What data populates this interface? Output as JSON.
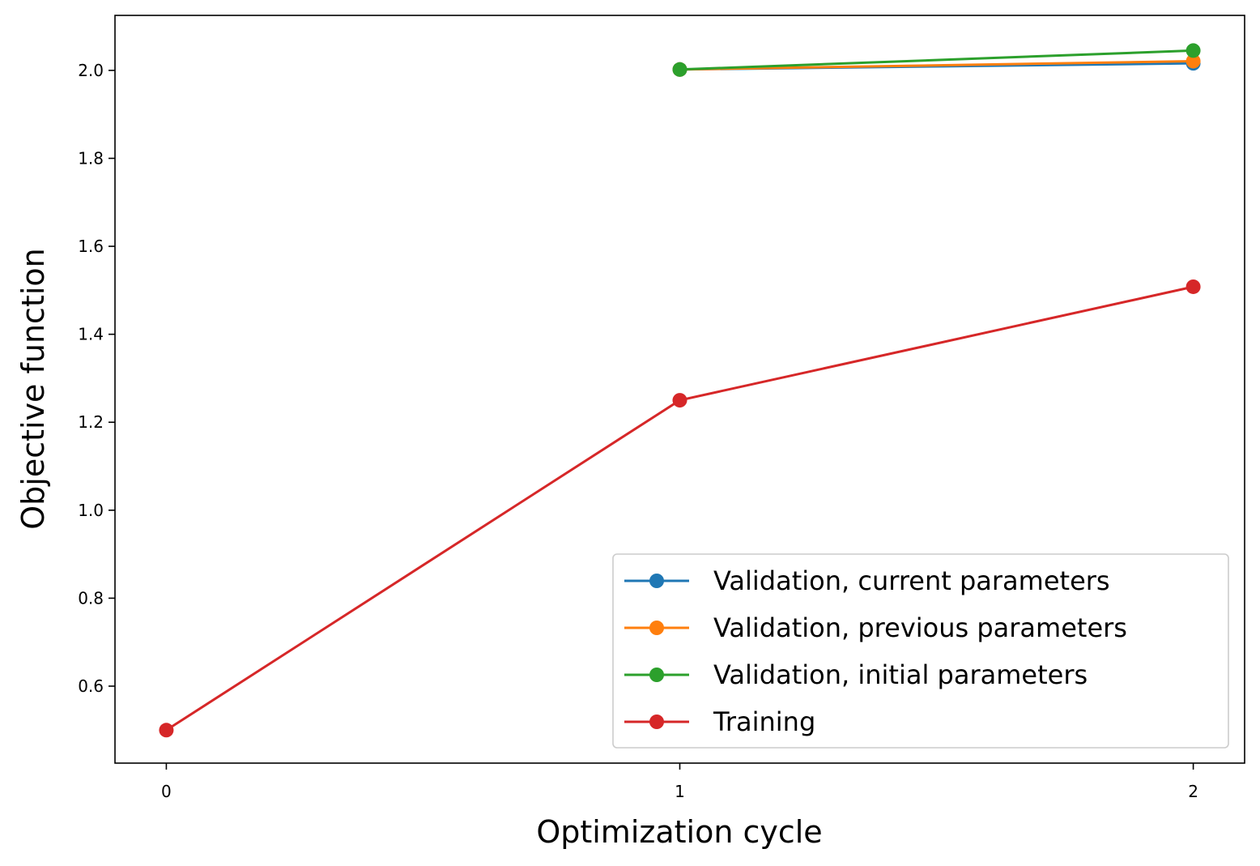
{
  "chart_data": {
    "type": "line",
    "xlabel": "Optimization cycle",
    "ylabel": "Objective function",
    "xlim": [
      -0.1,
      2.1
    ],
    "ylim": [
      0.425,
      2.125
    ],
    "xticks": [
      "0",
      "1",
      "2"
    ],
    "yticks": [
      "0.6",
      "0.8",
      "1.0",
      "1.2",
      "1.4",
      "1.6",
      "1.8",
      "2.0"
    ],
    "grid": false,
    "legend_position": "lower-right",
    "series": [
      {
        "name": "Validation, current parameters",
        "color": "#1f77b4",
        "x": [
          1,
          2
        ],
        "y": [
          2.002,
          2.016
        ]
      },
      {
        "name": "Validation, previous parameters",
        "color": "#ff7f0e",
        "x": [
          1,
          2
        ],
        "y": [
          2.002,
          2.021
        ]
      },
      {
        "name": "Validation, initial parameters",
        "color": "#2ca02c",
        "x": [
          1,
          2
        ],
        "y": [
          2.002,
          2.045
        ]
      },
      {
        "name": "Training",
        "color": "#d62728",
        "x": [
          0,
          1,
          2
        ],
        "y": [
          0.5,
          1.25,
          1.508
        ]
      }
    ]
  }
}
